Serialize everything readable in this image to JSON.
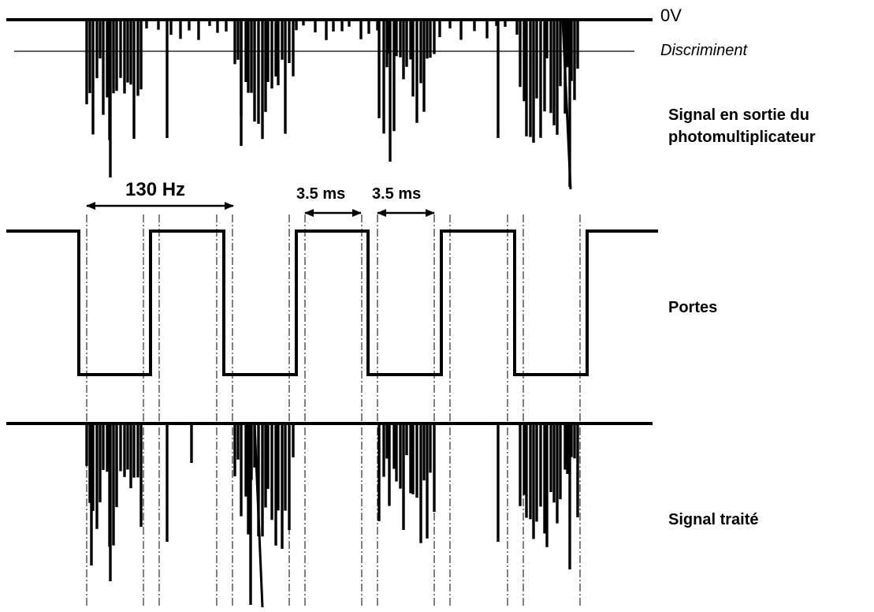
{
  "labels": {
    "zero_volt": "0V",
    "discriminator": "Discriminent",
    "pmt_signal_line1": "Signal en sortie du",
    "pmt_signal_line2": "photomultiplicateur",
    "gates": "Portes",
    "processed_signal": "Signal traité",
    "frequency": "130 Hz",
    "duration_1": "3.5 ms",
    "duration_2": "3.5 ms"
  },
  "colors": {
    "ink": "#000000",
    "background": "#ffffff"
  }
}
